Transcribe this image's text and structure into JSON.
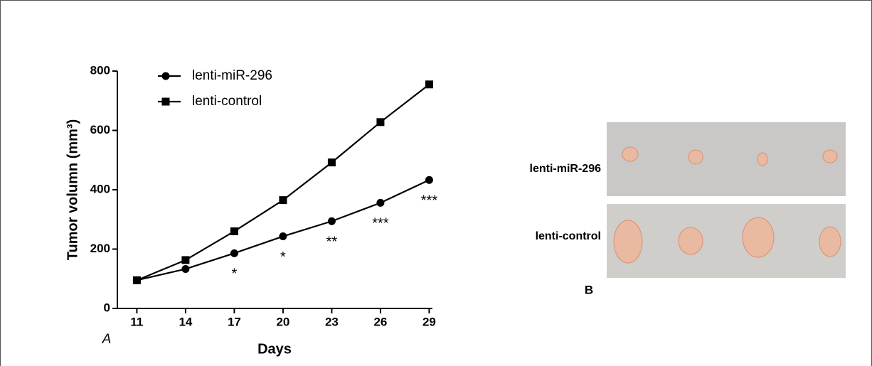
{
  "chart_data": {
    "type": "line",
    "y_label": "Tumor volumn (mm³)",
    "x_label": "Days",
    "panel_label": "A",
    "x": [
      11,
      14,
      17,
      20,
      23,
      26,
      29
    ],
    "xlim": [
      9.8,
      29.2
    ],
    "xticks": [
      11,
      14,
      17,
      20,
      23,
      26,
      29
    ],
    "ylim": [
      0,
      800
    ],
    "yticks": [
      0,
      200,
      400,
      600,
      800
    ],
    "series": [
      {
        "name": "lenti-miR-296",
        "color": "#000000",
        "marker": "circle",
        "values": [
          95,
          133,
          186,
          243,
          294,
          356,
          433
        ]
      },
      {
        "name": "lenti-control",
        "color": "#000000",
        "marker": "square",
        "values": [
          95,
          163,
          260,
          365,
          492,
          628,
          755
        ]
      }
    ],
    "annotations": [
      {
        "text": "*",
        "x": 17
      },
      {
        "text": "*",
        "x": 20
      },
      {
        "text": "**",
        "x": 23
      },
      {
        "text": "***",
        "x": 26
      },
      {
        "text": "***",
        "x": 29
      }
    ]
  },
  "photo_panel": {
    "panel_label": "B",
    "rows": [
      "lenti-miR-296",
      "lenti-control"
    ]
  }
}
